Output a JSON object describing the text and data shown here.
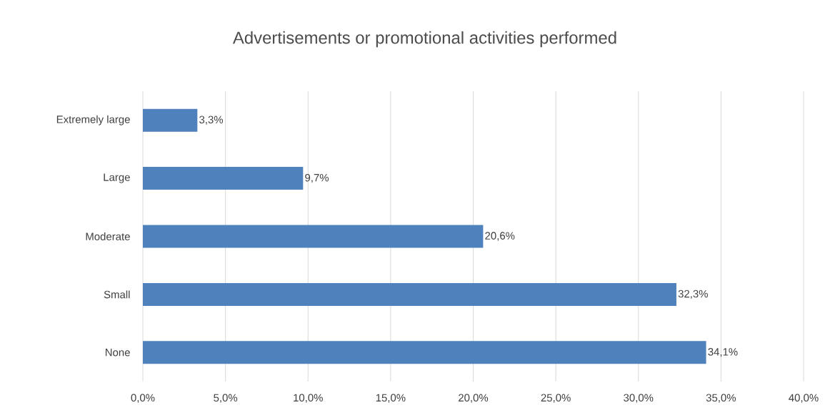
{
  "chart_data": {
    "type": "bar",
    "orientation": "horizontal",
    "title": "Advertisements or promotional activities performed",
    "categories": [
      "Extremely large",
      "Large",
      "Moderate",
      "Small",
      "None"
    ],
    "values": [
      3.3,
      9.7,
      20.6,
      32.3,
      34.1
    ],
    "value_labels": [
      "3,3%",
      "9,7%",
      "20,6%",
      "32,3%",
      "34,1%"
    ],
    "color": "#4f81bd",
    "xlim": [
      0,
      40
    ],
    "xticks": [
      {
        "value": 0,
        "label": "0,0%"
      },
      {
        "value": 5,
        "label": "5,0%"
      },
      {
        "value": 10,
        "label": "10,0%"
      },
      {
        "value": 15,
        "label": "15,0%"
      },
      {
        "value": 20,
        "label": "20,0%"
      },
      {
        "value": 25,
        "label": "25,0%"
      },
      {
        "value": 30,
        "label": "30,0%"
      },
      {
        "value": 35,
        "label": "35,0%"
      },
      {
        "value": 40,
        "label": "40,0%"
      }
    ],
    "grid": "x"
  }
}
